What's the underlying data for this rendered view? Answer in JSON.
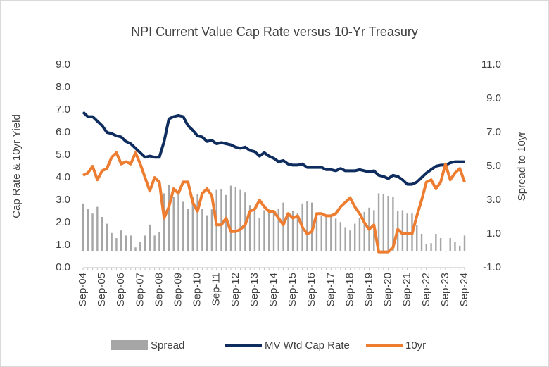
{
  "chart_data": {
    "type": "combo",
    "title": "NPI Current Value Cap Rate versus 10-Yr Treasury",
    "y_label": "Cap Rate & 10yr Yield",
    "y2_label": "Spread to 10yr",
    "categories": [
      "Sep-04",
      null,
      null,
      null,
      "Sep-05",
      null,
      null,
      null,
      "Sep-06",
      null,
      null,
      null,
      "Sep-07",
      null,
      null,
      null,
      "Sep-08",
      null,
      null,
      null,
      "Sep-09",
      null,
      null,
      null,
      "Sep-10",
      null,
      null,
      null,
      "Sep-11",
      null,
      null,
      null,
      "Sep-12",
      null,
      null,
      null,
      "Sep-13",
      null,
      null,
      null,
      "Sep-14",
      null,
      null,
      null,
      "Sep-15",
      null,
      null,
      null,
      "Sep-16",
      null,
      null,
      null,
      "Sep-17",
      null,
      null,
      null,
      "Sep-18",
      null,
      null,
      null,
      "Sep-19",
      null,
      null,
      null,
      "Sep-20",
      null,
      null,
      null,
      "Sep-21",
      null,
      null,
      null,
      "Sep-22",
      null,
      null,
      null,
      "Sep-23",
      null,
      null,
      null,
      "Sep-24"
    ],
    "ylim": [
      0,
      9
    ],
    "yticks": [
      {
        "value": 0,
        "label": "0.0"
      },
      {
        "value": 1,
        "label": "1.0"
      },
      {
        "value": 2,
        "label": "2.0"
      },
      {
        "value": 3,
        "label": "3.0"
      },
      {
        "value": 4,
        "label": "4.0"
      },
      {
        "value": 5,
        "label": "5.0"
      },
      {
        "value": 6,
        "label": "6.0"
      },
      {
        "value": 7,
        "label": "7.0"
      },
      {
        "value": 8,
        "label": "8.0"
      },
      {
        "value": 9,
        "label": "9.0"
      }
    ],
    "y2lim": [
      -1,
      11
    ],
    "y2ticks": [
      {
        "value": -1,
        "label": "-1.0"
      },
      {
        "value": 1,
        "label": "1.0"
      },
      {
        "value": 3,
        "label": "3.0"
      },
      {
        "value": 5,
        "label": "5.0"
      },
      {
        "value": 7,
        "label": "7.0"
      },
      {
        "value": 9,
        "label": "9.0"
      },
      {
        "value": 11,
        "label": "11.0"
      }
    ],
    "grid": false,
    "legend": "bottom",
    "series": [
      {
        "name": "Spread",
        "type": "bar",
        "axis": "y2",
        "color": "#a6a6a6",
        "values": [
          2.8,
          2.5,
          2.2,
          2.6,
          2.0,
          1.6,
          1.05,
          0.75,
          1.2,
          0.9,
          0.9,
          0.2,
          0.5,
          0.9,
          1.55,
          0.9,
          1.1,
          3.4,
          3.9,
          3.2,
          3.45,
          2.9,
          2.5,
          3.2,
          3.35,
          2.5,
          2.1,
          2.45,
          3.6,
          3.65,
          3.3,
          3.85,
          3.75,
          3.6,
          3.45,
          2.7,
          2.55,
          1.95,
          2.4,
          2.45,
          2.35,
          2.5,
          2.85,
          2.2,
          2.35,
          2.25,
          2.8,
          2.95,
          2.85,
          2.05,
          2.05,
          2.05,
          2.05,
          1.9,
          1.7,
          1.4,
          1.2,
          1.6,
          1.95,
          2.3,
          2.55,
          2.4,
          3.4,
          3.35,
          3.25,
          3.2,
          2.35,
          2.4,
          2.2,
          2.2,
          1.5,
          1.0,
          0.4,
          0.45,
          1.0,
          0.75,
          -0.05,
          0.75,
          0.5,
          0.3,
          0.9
        ]
      },
      {
        "name": "MV Wtd Cap Rate",
        "type": "line",
        "color": "#0e2c5e",
        "values": [
          6.9,
          6.7,
          6.7,
          6.5,
          6.3,
          6.0,
          5.95,
          5.85,
          5.8,
          5.6,
          5.5,
          5.3,
          5.1,
          4.9,
          4.95,
          4.9,
          4.9,
          5.6,
          6.6,
          6.7,
          6.75,
          6.7,
          6.3,
          6.1,
          5.85,
          5.8,
          5.6,
          5.65,
          5.5,
          5.55,
          5.5,
          5.45,
          5.35,
          5.3,
          5.35,
          5.2,
          5.15,
          4.95,
          5.1,
          4.95,
          4.85,
          4.7,
          4.75,
          4.6,
          4.55,
          4.55,
          4.6,
          4.45,
          4.45,
          4.45,
          4.45,
          4.35,
          4.35,
          4.3,
          4.4,
          4.3,
          4.3,
          4.3,
          4.35,
          4.3,
          4.25,
          4.3,
          4.1,
          4.05,
          3.95,
          4.1,
          4.05,
          3.9,
          3.7,
          3.7,
          3.8,
          4.0,
          4.2,
          4.35,
          4.5,
          4.55,
          4.55,
          4.65,
          4.7,
          4.7,
          4.7
        ]
      },
      {
        "name": "10yr",
        "type": "line",
        "color": "#ed7d31",
        "values": [
          4.1,
          4.2,
          4.5,
          3.9,
          4.3,
          4.4,
          4.9,
          5.1,
          4.6,
          4.7,
          4.6,
          5.1,
          4.6,
          4.0,
          3.4,
          4.0,
          3.8,
          2.2,
          2.7,
          3.5,
          3.3,
          3.8,
          3.8,
          2.9,
          2.5,
          3.3,
          3.5,
          3.2,
          1.9,
          1.9,
          2.2,
          1.6,
          1.6,
          1.7,
          1.9,
          2.5,
          2.6,
          3.0,
          2.7,
          2.5,
          2.5,
          2.2,
          1.9,
          2.4,
          2.2,
          2.3,
          1.8,
          1.5,
          1.6,
          2.4,
          2.4,
          2.3,
          2.3,
          2.4,
          2.7,
          2.9,
          3.1,
          2.7,
          2.4,
          2.0,
          1.7,
          1.9,
          0.7,
          0.7,
          0.7,
          0.9,
          1.7,
          1.5,
          1.5,
          1.5,
          2.3,
          3.0,
          3.8,
          3.9,
          3.5,
          3.8,
          4.6,
          3.9,
          4.2,
          4.4,
          3.8
        ]
      }
    ]
  }
}
